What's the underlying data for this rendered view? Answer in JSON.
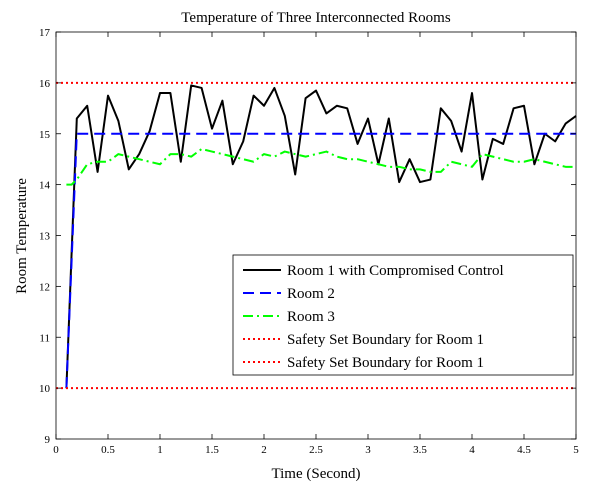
{
  "chart_data": {
    "type": "line",
    "title": "Temperature of Three Interconnected Rooms",
    "xlabel": "Time (Second)",
    "ylabel": "Room Temperature",
    "xlim": [
      0,
      5
    ],
    "ylim": [
      9,
      17
    ],
    "xticks": [
      0,
      0.5,
      1,
      1.5,
      2,
      2.5,
      3,
      3.5,
      4,
      4.5,
      5
    ],
    "xtick_labels": [
      "0",
      "0.5",
      "1",
      "1.5",
      "2",
      "2.5",
      "3",
      "3.5",
      "4",
      "4.5",
      "5"
    ],
    "yticks": [
      9,
      10,
      11,
      12,
      13,
      14,
      15,
      16,
      17
    ],
    "ytick_labels": [
      "9",
      "10",
      "11",
      "12",
      "13",
      "14",
      "15",
      "16",
      "17"
    ],
    "grid": false,
    "legend_position": "bottom-right",
    "series": [
      {
        "name": "Room 1 with Compromised Control",
        "color": "#000000",
        "style": "solid",
        "x": [
          0.1,
          0.2,
          0.3,
          0.4,
          0.5,
          0.6,
          0.7,
          0.8,
          0.9,
          1.0,
          1.1,
          1.2,
          1.3,
          1.4,
          1.5,
          1.6,
          1.7,
          1.8,
          1.9,
          2.0,
          2.1,
          2.2,
          2.3,
          2.4,
          2.5,
          2.6,
          2.7,
          2.8,
          2.9,
          3.0,
          3.1,
          3.2,
          3.3,
          3.4,
          3.5,
          3.6,
          3.7,
          3.8,
          3.9,
          4.0,
          4.1,
          4.2,
          4.3,
          4.4,
          4.5,
          4.6,
          4.7,
          4.8,
          4.9,
          5.0
        ],
        "y": [
          10.0,
          15.3,
          15.55,
          14.25,
          15.75,
          15.25,
          14.3,
          14.6,
          15.05,
          15.8,
          15.8,
          14.45,
          15.95,
          15.9,
          15.1,
          15.65,
          14.4,
          14.85,
          15.75,
          15.55,
          15.9,
          15.35,
          14.2,
          15.7,
          15.85,
          15.4,
          15.55,
          15.5,
          14.8,
          15.3,
          14.4,
          15.3,
          14.05,
          14.5,
          14.05,
          14.1,
          15.5,
          15.25,
          14.65,
          15.8,
          14.1,
          14.9,
          14.8,
          15.5,
          15.55,
          14.4,
          15.0,
          14.85,
          15.2,
          15.35
        ]
      },
      {
        "name": "Room 2",
        "color": "#0000ff",
        "style": "dashed",
        "x": [
          0.1,
          0.2,
          5.0
        ],
        "y": [
          10.0,
          15.0,
          15.0
        ]
      },
      {
        "name": "Room 3",
        "color": "#00ff00",
        "style": "dashdot",
        "x": [
          0.1,
          0.15,
          0.2,
          0.3,
          0.4,
          0.5,
          0.6,
          0.7,
          0.8,
          0.9,
          1.0,
          1.1,
          1.2,
          1.3,
          1.4,
          1.5,
          1.6,
          1.7,
          1.8,
          1.9,
          2.0,
          2.1,
          2.2,
          2.3,
          2.4,
          2.5,
          2.6,
          2.7,
          2.8,
          2.9,
          3.0,
          3.1,
          3.2,
          3.3,
          3.4,
          3.5,
          3.6,
          3.7,
          3.8,
          3.9,
          4.0,
          4.1,
          4.2,
          4.3,
          4.4,
          4.5,
          4.6,
          4.7,
          4.8,
          4.9,
          5.0
        ],
        "y": [
          14.0,
          14.0,
          14.1,
          14.4,
          14.45,
          14.45,
          14.6,
          14.55,
          14.5,
          14.45,
          14.4,
          14.6,
          14.6,
          14.55,
          14.7,
          14.65,
          14.6,
          14.55,
          14.5,
          14.45,
          14.6,
          14.55,
          14.65,
          14.6,
          14.55,
          14.6,
          14.65,
          14.55,
          14.5,
          14.5,
          14.45,
          14.4,
          14.35,
          14.35,
          14.3,
          14.3,
          14.25,
          14.25,
          14.45,
          14.4,
          14.35,
          14.6,
          14.55,
          14.5,
          14.45,
          14.45,
          14.5,
          14.45,
          14.4,
          14.35,
          14.35
        ]
      },
      {
        "name": "Safety Set Boundary for Room 1",
        "color": "#ff0000",
        "style": "dotted",
        "x": [
          0,
          5
        ],
        "y": [
          16,
          16
        ]
      },
      {
        "name": "Safety Set Boundary for Room 1",
        "color": "#ff0000",
        "style": "dotted",
        "x": [
          0,
          5
        ],
        "y": [
          10,
          10
        ]
      }
    ]
  }
}
